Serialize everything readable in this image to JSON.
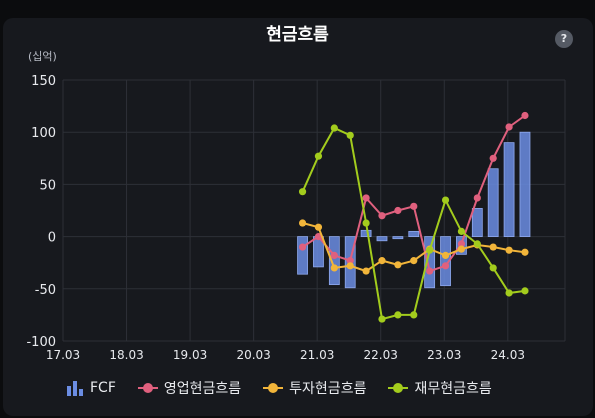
{
  "title": "현금흐름",
  "help_label": "?",
  "unit_label": "(십억)",
  "colors": {
    "fcf": "#6b8de3",
    "operating": "#e0607e",
    "investing": "#f2b53a",
    "financing": "#a3cc1d"
  },
  "chart_data": {
    "type": "bar",
    "title": "현금흐름",
    "ylabel": "(십억)",
    "ylim": [
      -100,
      150
    ],
    "yticks": [
      150,
      100,
      50,
      0,
      -50,
      -100
    ],
    "xlim": [
      17.03,
      24.93
    ],
    "xticks": [
      "17.03",
      "18.03",
      "19.03",
      "20.03",
      "21.03",
      "22.03",
      "23.03",
      "24.03"
    ],
    "grid": true,
    "legend_position": "bottom",
    "x": [
      20.8,
      21.05,
      21.3,
      21.55,
      21.8,
      22.05,
      22.3,
      22.55,
      22.8,
      23.05,
      23.3,
      23.55,
      23.8,
      24.05,
      24.3
    ],
    "series": [
      {
        "name": "FCF",
        "type": "bar",
        "values": [
          -36,
          -29,
          -46,
          -49,
          6,
          -4,
          -2,
          5,
          -49,
          -47,
          -17,
          27,
          65,
          90,
          100
        ]
      },
      {
        "name": "영업현금흐름",
        "type": "line",
        "values": [
          -10,
          0,
          -18,
          -23,
          37,
          20,
          25,
          29,
          -33,
          -28,
          -7,
          37,
          75,
          105,
          116
        ]
      },
      {
        "name": "투자현금흐름",
        "type": "line",
        "values": [
          13,
          9,
          -30,
          -28,
          -33,
          -23,
          -27,
          -23,
          -12,
          -18,
          -12,
          -8,
          -10,
          -13,
          -15
        ]
      },
      {
        "name": "재무현금흐름",
        "type": "line",
        "values": [
          43,
          77,
          104,
          97,
          13,
          -79,
          -75,
          -75,
          -13,
          35,
          5,
          -7,
          -30,
          -54,
          -52
        ]
      }
    ]
  }
}
